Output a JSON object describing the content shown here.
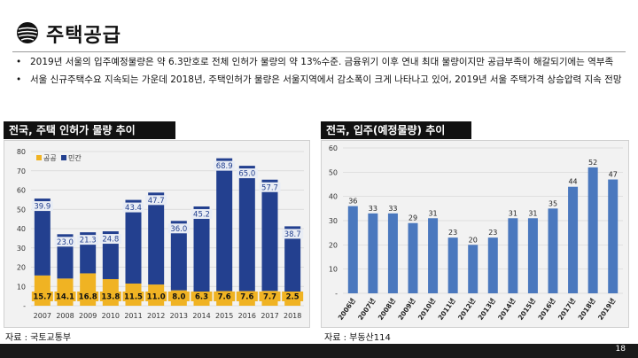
{
  "header": {
    "title": "주택공급"
  },
  "bullets": [
    "2019년 서울의 입주예정물량은 약 6.3만호로 전체 인허가 물량의 약 13%수준. 금융위기 이후 연내      최대 물량이지만 공급부족이 해갈되기에는 역부족",
    "서울 신규주택수요 지속되는 가운데 2018년, 주택인허가 물량은 서울지역에서 감소폭이 크게 나타나고 있어, 2019년 서울 주택가격 상승압력 지속 전망"
  ],
  "left_panel": {
    "title": "전국, 주택 인허가 물량 추이",
    "source": "자료 : 국토교통부"
  },
  "right_panel": {
    "title": "전국, 입주(예정물량) 추이",
    "source": "자료 : 부동산114"
  },
  "footer": {
    "page": "18"
  },
  "colors": {
    "public": "#f0b323",
    "private": "#23408f",
    "bar": "#4a78be"
  },
  "chart_data": [
    {
      "type": "bar",
      "stacked": true,
      "categories": [
        "2007",
        "2008",
        "2009",
        "2010",
        "2011",
        "2012",
        "2013",
        "2014",
        "2015",
        "2016",
        "2017",
        "2018"
      ],
      "series": [
        {
          "name": "공공",
          "values": [
            15.7,
            14.1,
            16.8,
            13.8,
            11.5,
            11.0,
            8.0,
            6.3,
            7.6,
            7.6,
            7.7,
            2.5
          ]
        },
        {
          "name": "민간",
          "values": [
            39.9,
            23.0,
            21.3,
            24.8,
            43.4,
            47.7,
            36.0,
            45.2,
            68.9,
            65.0,
            57.7,
            38.7
          ]
        }
      ],
      "ylim": [
        0,
        80
      ],
      "yticks": [
        "-",
        "10",
        "20",
        "30",
        "40",
        "50",
        "60",
        "70",
        "80"
      ],
      "legend": "top-left",
      "grid": true
    },
    {
      "type": "bar",
      "categories": [
        "2006년",
        "2007년",
        "2008년",
        "2009년",
        "2010년",
        "2011년",
        "2012년",
        "2013년",
        "2014년",
        "2015년",
        "2016년",
        "2017년",
        "2018년",
        "2019년"
      ],
      "values": [
        36,
        33,
        33,
        29,
        31,
        23,
        20,
        23,
        31,
        31,
        35,
        44,
        52,
        47
      ],
      "ylim": [
        0,
        60
      ],
      "yticks": [
        "-",
        "10",
        "20",
        "30",
        "40",
        "50",
        "60"
      ],
      "grid": true
    }
  ]
}
